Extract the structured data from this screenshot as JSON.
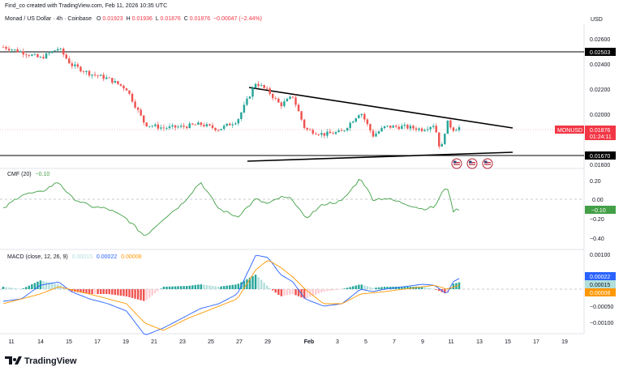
{
  "header": {
    "created_by": "Find_co created with TradingView.com, Feb 11, 2026 10:35 UTC",
    "currency": "USD",
    "symbol_title": "Monad / US Dollar · 4h · Coinbase",
    "ohlc": {
      "o_label": "O",
      "o": "0.01923",
      "h_label": "H",
      "h": "0.01936",
      "l_label": "L",
      "l": "0.01876",
      "c_label": "C",
      "c": "0.01876",
      "change": "−0.00047 (−2.44%)"
    }
  },
  "colors": {
    "up": "#26a69a",
    "down": "#ef5350",
    "cmf_line": "#43a047",
    "macd_line": "#2962ff",
    "signal_line": "#ff9800",
    "price_tag": "#f23645",
    "level_tag": "#000000"
  },
  "price_axis": [
    "0.02600",
    "0.02400",
    "0.02200",
    "0.02000",
    "0.01800",
    "0.01600"
  ],
  "price_tags": {
    "upper_level": "0.02503",
    "symbol": "MONUSD",
    "last_price": "0.01876",
    "countdown": "01:24:11",
    "lower_level": "0.01670"
  },
  "cmf": {
    "title": "CMF (20)",
    "value": "−0.10",
    "axis": [
      "0.20",
      "0.00",
      "−0.20",
      "−0.40"
    ],
    "tag": "−0.10"
  },
  "macd": {
    "title": "MACD (close, 12, 26, 9)",
    "v1": "0.00015",
    "v2": "0.00022",
    "v3": "0.00008",
    "axis": [
      "0.00100",
      "0.00050",
      "−0.00050",
      "−0.00100"
    ],
    "tags": [
      "0.00022",
      "0.00015",
      "0.00008"
    ]
  },
  "time_axis": [
    "11",
    "14",
    "15",
    "17",
    "19",
    "21",
    "23",
    "25",
    "27",
    "29",
    "Feb",
    "3",
    "5",
    "7",
    "9",
    "11",
    "13",
    "15",
    "17",
    "19"
  ],
  "event_icons": [
    "us-flag-icon",
    "us-flag-icon",
    "us-flag-icon"
  ],
  "brand": "TradingView",
  "chart_data": {
    "type": "candlestick",
    "title": "Monad / US Dollar · 4h · Coinbase",
    "timeframe": "4h",
    "ylim": [
      0.0157,
      0.0265
    ],
    "x_ticks": [
      "11",
      "14",
      "15",
      "17",
      "19",
      "21",
      "23",
      "25",
      "27",
      "29",
      "Feb",
      "3",
      "5",
      "7",
      "9",
      "11",
      "13",
      "15",
      "17",
      "19"
    ],
    "horizontal_levels": [
      0.02503,
      0.0167
    ],
    "trendlines": [
      {
        "name": "descending resistance",
        "from": [
          0.4,
          0.02265
        ],
        "to": [
          0.83,
          0.0187
        ]
      },
      {
        "name": "ascending support",
        "from": [
          0.4,
          0.0163
        ],
        "to": [
          0.83,
          0.0168
        ]
      }
    ],
    "price_anchors": [
      [
        0.0,
        0.0251
      ],
      [
        0.03,
        0.0247
      ],
      [
        0.06,
        0.0242
      ],
      [
        0.09,
        0.025
      ],
      [
        0.11,
        0.0237
      ],
      [
        0.14,
        0.023
      ],
      [
        0.17,
        0.0226
      ],
      [
        0.2,
        0.0218
      ],
      [
        0.23,
        0.019
      ],
      [
        0.26,
        0.0187
      ],
      [
        0.29,
        0.0188
      ],
      [
        0.32,
        0.019
      ],
      [
        0.35,
        0.0186
      ],
      [
        0.38,
        0.0193
      ],
      [
        0.41,
        0.0223
      ],
      [
        0.43,
        0.0216
      ],
      [
        0.45,
        0.0205
      ],
      [
        0.47,
        0.0212
      ],
      [
        0.49,
        0.0186
      ],
      [
        0.52,
        0.0182
      ],
      [
        0.55,
        0.0184
      ],
      [
        0.58,
        0.02
      ],
      [
        0.6,
        0.0181
      ],
      [
        0.62,
        0.0188
      ],
      [
        0.65,
        0.0188
      ],
      [
        0.68,
        0.0186
      ],
      [
        0.7,
        0.019
      ],
      [
        0.71,
        0.0168
      ],
      [
        0.72,
        0.0192
      ],
      [
        0.73,
        0.0186
      ],
      [
        0.74,
        0.01876
      ]
    ],
    "cmf_anchors": [
      [
        0.0,
        -0.1
      ],
      [
        0.03,
        0.05
      ],
      [
        0.06,
        0.07
      ],
      [
        0.09,
        0.18
      ],
      [
        0.11,
        0.02
      ],
      [
        0.14,
        -0.07
      ],
      [
        0.17,
        -0.1
      ],
      [
        0.2,
        -0.2
      ],
      [
        0.23,
        -0.38
      ],
      [
        0.26,
        -0.2
      ],
      [
        0.29,
        -0.05
      ],
      [
        0.32,
        0.18
      ],
      [
        0.35,
        -0.1
      ],
      [
        0.38,
        -0.18
      ],
      [
        0.41,
        0.0
      ],
      [
        0.43,
        -0.05
      ],
      [
        0.45,
        0.02
      ],
      [
        0.47,
        0.0
      ],
      [
        0.49,
        -0.2
      ],
      [
        0.52,
        -0.05
      ],
      [
        0.55,
        -0.02
      ],
      [
        0.58,
        0.22
      ],
      [
        0.6,
        0.0
      ],
      [
        0.62,
        0.01
      ],
      [
        0.65,
        -0.04
      ],
      [
        0.68,
        -0.1
      ],
      [
        0.7,
        -0.08
      ],
      [
        0.72,
        0.15
      ],
      [
        0.73,
        -0.12
      ],
      [
        0.74,
        -0.1
      ]
    ],
    "macd_anchors": [
      [
        0.0,
        -0.00025
      ],
      [
        0.03,
        -0.0002
      ],
      [
        0.06,
        8e-05
      ],
      [
        0.09,
        0.00015
      ],
      [
        0.11,
        -5e-05
      ],
      [
        0.14,
        -0.0002
      ],
      [
        0.17,
        -0.0003
      ],
      [
        0.2,
        -0.00045
      ],
      [
        0.23,
        -0.00095
      ],
      [
        0.26,
        -0.0008
      ],
      [
        0.29,
        -0.0006
      ],
      [
        0.32,
        -0.0004
      ],
      [
        0.35,
        -0.0003
      ],
      [
        0.38,
        -0.0001
      ],
      [
        0.41,
        0.0007
      ],
      [
        0.43,
        0.00065
      ],
      [
        0.45,
        0.0003
      ],
      [
        0.47,
        0.00015
      ],
      [
        0.49,
        -0.0002
      ],
      [
        0.52,
        -0.00035
      ],
      [
        0.55,
        -0.0003
      ],
      [
        0.58,
        0.0
      ],
      [
        0.6,
        -5e-05
      ],
      [
        0.62,
        0.0
      ],
      [
        0.65,
        5e-05
      ],
      [
        0.68,
        0.0001
      ],
      [
        0.7,
        8e-05
      ],
      [
        0.72,
        -0.0001
      ],
      [
        0.73,
        0.00015
      ],
      [
        0.74,
        0.00022
      ]
    ],
    "signal_anchors": [
      [
        0.0,
        -0.0003
      ],
      [
        0.06,
        -0.0001
      ],
      [
        0.09,
        5e-05
      ],
      [
        0.14,
        -0.0001
      ],
      [
        0.2,
        -0.0003
      ],
      [
        0.23,
        -0.0007
      ],
      [
        0.26,
        -0.00085
      ],
      [
        0.3,
        -0.0006
      ],
      [
        0.35,
        -0.00035
      ],
      [
        0.38,
        -0.0002
      ],
      [
        0.41,
        0.0004
      ],
      [
        0.43,
        0.0006
      ],
      [
        0.45,
        0.00045
      ],
      [
        0.47,
        0.00025
      ],
      [
        0.49,
        0.0
      ],
      [
        0.52,
        -0.0003
      ],
      [
        0.55,
        -0.0003
      ],
      [
        0.58,
        -0.0001
      ],
      [
        0.62,
        -5e-05
      ],
      [
        0.65,
        0.0
      ],
      [
        0.7,
        8e-05
      ],
      [
        0.72,
        0.0
      ],
      [
        0.74,
        8e-05
      ]
    ]
  }
}
